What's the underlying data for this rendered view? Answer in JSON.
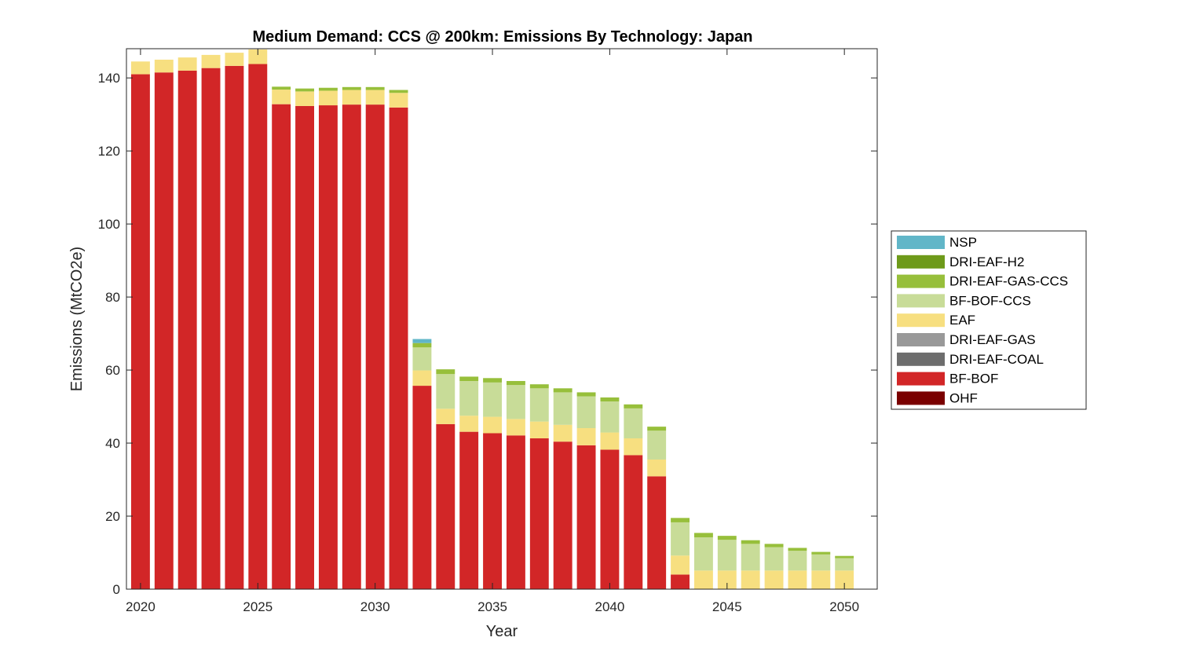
{
  "chart_data": {
    "type": "bar",
    "stacked": true,
    "title": "Medium Demand: CCS @ 200km: Emissions By Technology: Japan",
    "xlabel": "Year",
    "ylabel": "Emissions (MtCO2e)",
    "xlim": [
      2019.4,
      2051.4
    ],
    "ylim": [
      0,
      148
    ],
    "xticks": [
      2020,
      2025,
      2030,
      2035,
      2040,
      2045,
      2050
    ],
    "yticks": [
      0,
      20,
      40,
      60,
      80,
      100,
      120,
      140
    ],
    "grid": false,
    "legend_position": "right",
    "x": [
      2020,
      2021,
      2022,
      2023,
      2024,
      2025,
      2026,
      2027,
      2028,
      2029,
      2030,
      2031,
      2032,
      2033,
      2034,
      2035,
      2036,
      2037,
      2038,
      2039,
      2040,
      2041,
      2042,
      2043,
      2044,
      2045,
      2046,
      2047,
      2048,
      2049,
      2050
    ],
    "series": [
      {
        "name": "OHF",
        "color": "#7a0000",
        "values": [
          0,
          0,
          0,
          0,
          0,
          0,
          0,
          0,
          0,
          0,
          0,
          0,
          0,
          0,
          0,
          0,
          0,
          0,
          0,
          0,
          0,
          0,
          0,
          0,
          0,
          0,
          0,
          0,
          0,
          0,
          0
        ]
      },
      {
        "name": "DRI-EAF-COAL",
        "color": "#6d6d6d",
        "values": [
          0,
          0,
          0,
          0,
          0,
          0,
          0,
          0,
          0,
          0,
          0,
          0,
          0,
          0,
          0,
          0,
          0,
          0,
          0,
          0,
          0,
          0,
          0,
          0,
          0,
          0,
          0,
          0,
          0,
          0,
          0
        ]
      },
      {
        "name": "DRI-EAF-GAS",
        "color": "#999999",
        "values": [
          0,
          0,
          0,
          0,
          0,
          0,
          0,
          0,
          0,
          0,
          0,
          0,
          0,
          0,
          0,
          0,
          0,
          0,
          0,
          0,
          0,
          0,
          0,
          0,
          0,
          0,
          0,
          0,
          0,
          0,
          0
        ]
      },
      {
        "name": "BF-BOF",
        "color": "#d22627",
        "values": [
          141,
          141.5,
          142,
          142.7,
          143.3,
          143.8,
          132.8,
          132.3,
          132.5,
          132.7,
          132.7,
          131.9,
          55.7,
          45.2,
          43.1,
          42.7,
          42.1,
          41.3,
          40.4,
          39.4,
          38.2,
          36.7,
          30.9,
          4,
          0,
          0,
          0,
          0,
          0,
          0,
          0
        ]
      },
      {
        "name": "EAF",
        "color": "#f7df80",
        "values": [
          3.5,
          3.5,
          3.6,
          3.6,
          3.6,
          4,
          4,
          4,
          4,
          4,
          4,
          4,
          4.2,
          4.2,
          4.4,
          4.5,
          4.5,
          4.6,
          4.6,
          4.7,
          4.7,
          4.6,
          4.6,
          5.2,
          5.1,
          5.1,
          5.1,
          5.1,
          5.1,
          5.1,
          5.1
        ]
      },
      {
        "name": "BF-BOF-CCS",
        "color": "#c8dc98",
        "values": [
          0,
          0,
          0,
          0,
          0,
          0,
          0,
          0,
          0,
          0,
          0,
          0,
          6.3,
          9.5,
          9.5,
          9.4,
          9.3,
          9.1,
          8.9,
          8.7,
          8.5,
          8.2,
          7.9,
          9.1,
          9.1,
          8.4,
          7.3,
          6.4,
          5.4,
          4.4,
          3.4
        ]
      },
      {
        "name": "DRI-EAF-GAS-CCS",
        "color": "#97bf3b",
        "values": [
          0,
          0,
          0,
          0,
          0,
          0,
          0.8,
          0.8,
          0.8,
          0.8,
          0.8,
          0.8,
          1.2,
          1.3,
          1.2,
          1.2,
          1.1,
          1.1,
          1.1,
          1.1,
          1.1,
          1.1,
          1.1,
          1.2,
          1.2,
          1.1,
          1,
          0.9,
          0.8,
          0.7,
          0.6
        ]
      },
      {
        "name": "DRI-EAF-H2",
        "color": "#6e9a1a",
        "values": [
          0,
          0,
          0,
          0,
          0,
          0,
          0,
          0,
          0,
          0,
          0,
          0,
          0,
          0,
          0,
          0,
          0,
          0,
          0,
          0,
          0,
          0,
          0,
          0,
          0,
          0,
          0,
          0,
          0,
          0,
          0
        ]
      },
      {
        "name": "NSP",
        "color": "#61b6c8",
        "values": [
          0,
          0,
          0,
          0,
          0,
          0,
          0,
          0,
          0,
          0,
          0,
          0,
          1.1,
          0,
          0,
          0,
          0,
          0,
          0,
          0,
          0,
          0,
          0,
          0,
          0,
          0,
          0,
          0,
          0,
          0,
          0
        ]
      }
    ],
    "legend_order": [
      "NSP",
      "DRI-EAF-H2",
      "DRI-EAF-GAS-CCS",
      "BF-BOF-CCS",
      "EAF",
      "DRI-EAF-GAS",
      "DRI-EAF-COAL",
      "BF-BOF",
      "OHF"
    ]
  }
}
